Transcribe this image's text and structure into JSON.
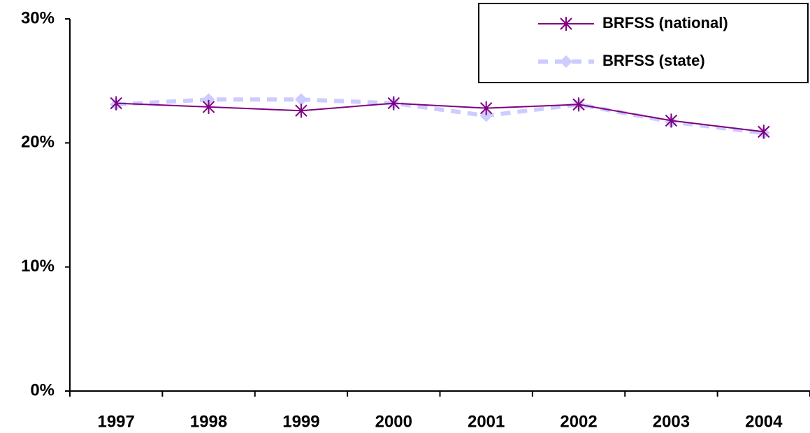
{
  "chart_data": {
    "type": "line",
    "categories": [
      "1997",
      "1998",
      "1999",
      "2000",
      "2001",
      "2002",
      "2003",
      "2004"
    ],
    "series": [
      {
        "name": "BRFSS (national)",
        "color": "#800080",
        "values": [
          23.2,
          22.9,
          22.6,
          23.2,
          22.8,
          23.1,
          21.8,
          20.9
        ]
      },
      {
        "name": "BRFSS (state)",
        "color": "#ccccff",
        "values": [
          23.1,
          23.5,
          23.5,
          23.2,
          22.2,
          23.1,
          21.7,
          20.8
        ]
      }
    ],
    "ylim": [
      0,
      30
    ],
    "yticks": [
      {
        "value": 0,
        "label": "0%"
      },
      {
        "value": 10,
        "label": "10%"
      },
      {
        "value": 20,
        "label": "20%"
      },
      {
        "value": 30,
        "label": "30%"
      }
    ],
    "legend": "top-right"
  }
}
